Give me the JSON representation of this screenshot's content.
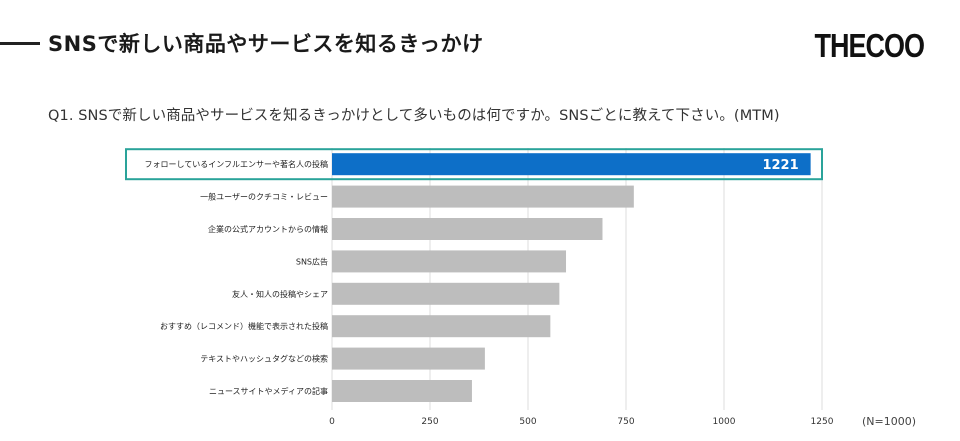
{
  "header": {
    "title": "SNSで新しい商品やサービスを知るきっかけ",
    "logo": "THECOO"
  },
  "question": "Q1. SNSで新しい商品やサービスを知るきっかけとして多いものは何ですか。SNSごとに教えて下さい。(MTM)",
  "note": "(N=1000)",
  "colors": {
    "highlight_bar": "#0d6fc8",
    "highlight_box": "#2aa39a",
    "bar": "#bdbdbd",
    "grid": "#dcdcdc"
  },
  "chart_data": {
    "type": "bar",
    "orientation": "horizontal",
    "categories": [
      "フォローしているインフルエンサーや著名人の投稿",
      "一般ユーザーのクチコミ・レビュー",
      "企業の公式アカウントからの情報",
      "SNS広告",
      "友人・知人の投稿やシェア",
      "おすすめ（レコメンド）機能で表示された投稿",
      "テキストやハッシュタグなどの検索",
      "ニュースサイトやメディアの記事"
    ],
    "values": [
      1221,
      770,
      690,
      597,
      580,
      557,
      390,
      357
    ],
    "data_labels": [
      "1221",
      "",
      "",
      "",
      "",
      "",
      "",
      ""
    ],
    "highlight_index": 0,
    "xlim": [
      0,
      1250
    ],
    "xticks": [
      "0",
      "250",
      "500",
      "750",
      "1000",
      "1250"
    ],
    "xtick_values": [
      0,
      250,
      500,
      750,
      1000,
      1250
    ],
    "grid": true
  }
}
